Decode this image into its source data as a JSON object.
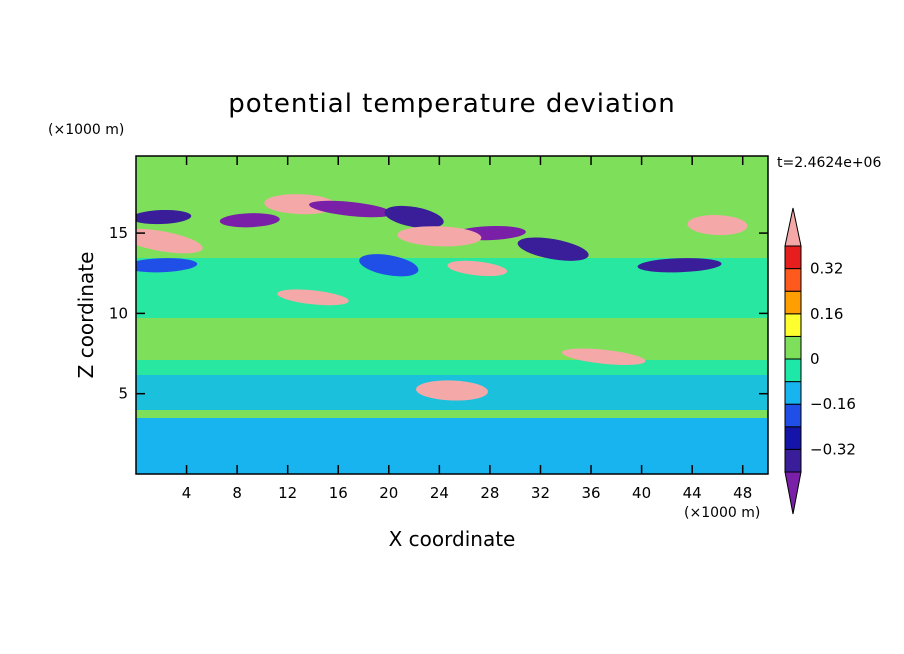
{
  "chart_data": {
    "type": "heatmap",
    "title": "potential temperature deviation",
    "xlabel": "X coordinate",
    "ylabel": "Z coordinate",
    "x_unit": "(×1000 m)",
    "y_unit": "(×1000 m)",
    "time_label": "t=2.4624e+06",
    "xlim": [
      0,
      50
    ],
    "ylim": [
      0,
      19.8
    ],
    "x_ticks": [
      4,
      8,
      12,
      16,
      20,
      24,
      28,
      32,
      36,
      40,
      44,
      48
    ],
    "y_ticks": [
      5,
      10,
      15
    ],
    "colorbar": {
      "levels": [
        -0.4,
        -0.32,
        -0.24,
        -0.16,
        -0.08,
        0,
        0.08,
        0.16,
        0.24,
        0.32,
        0.4
      ],
      "tick_values": [
        0.32,
        0.16,
        0,
        -0.16,
        -0.32
      ],
      "tick_labels": [
        "0.32",
        "0.16",
        "0",
        "−0.16",
        "−0.32"
      ],
      "colors": [
        "#7a1fa8",
        "#3a1d98",
        "#1414a8",
        "#1f4fe6",
        "#18b4f0",
        "#1ee8a8",
        "#7ee05a",
        "#ffff30",
        "#ff9e00",
        "#ff5a1e",
        "#e61e1e",
        "#f5a8a8"
      ]
    },
    "features": [
      {
        "x": 9,
        "z": 15.8,
        "value": -0.45
      },
      {
        "x": 13,
        "z": 16.8,
        "value": 0.45
      },
      {
        "x": 17,
        "z": 16.5,
        "value": -0.45
      },
      {
        "x": 22,
        "z": 16.0,
        "value": -0.4
      },
      {
        "x": 28,
        "z": 15.0,
        "value": -0.45
      },
      {
        "x": 24,
        "z": 14.8,
        "value": 0.45
      },
      {
        "x": 27,
        "z": 12.8,
        "value": 0.45
      },
      {
        "x": 33,
        "z": 14.0,
        "value": -0.36
      },
      {
        "x": 43,
        "z": 13.0,
        "value": -0.36
      },
      {
        "x": 46,
        "z": 15.5,
        "value": 0.45
      },
      {
        "x": 14,
        "z": 11.0,
        "value": 0.45
      },
      {
        "x": 2,
        "z": 14.5,
        "value": 0.45
      },
      {
        "x": 2,
        "z": 16.0,
        "value": -0.4
      },
      {
        "x": 25,
        "z": 5.2,
        "value": 0.45
      },
      {
        "x": 37,
        "z": 7.3,
        "value": 0.45
      },
      {
        "x": 20,
        "z": 13.0,
        "value": -0.2
      },
      {
        "x": 2,
        "z": 13.0,
        "value": -0.2
      }
    ]
  }
}
